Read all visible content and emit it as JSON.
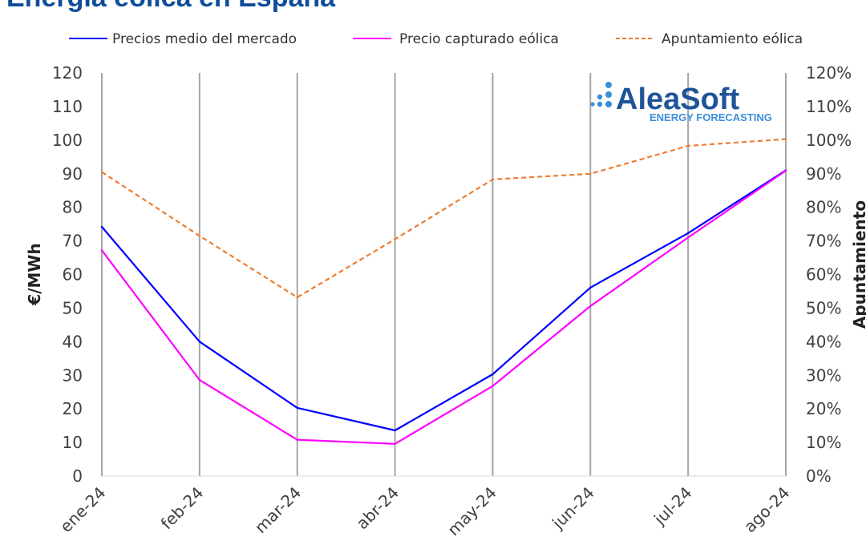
{
  "chart_data": {
    "type": "line",
    "title": "Energía eólica en España",
    "ylabel": "€/MWh",
    "y2label": "Apuntamiento",
    "categories": [
      "ene-24",
      "feb-24",
      "mar-24",
      "abr-24",
      "may-24",
      "jun-24",
      "jul-24",
      "ago-24"
    ],
    "ylim": [
      0,
      120
    ],
    "yticks": [
      "0",
      "10",
      "20",
      "30",
      "40",
      "50",
      "60",
      "70",
      "80",
      "90",
      "100",
      "110",
      "120"
    ],
    "y2lim": [
      0,
      1.2
    ],
    "y2ticks": [
      "0%",
      "10%",
      "20%",
      "30%",
      "40%",
      "50%",
      "60%",
      "70%",
      "80%",
      "90%",
      "100%",
      "110%",
      "120%"
    ],
    "grid": "vertical",
    "legend_position": "top",
    "series": [
      {
        "name": "Precios medio del mercado",
        "axis": "left",
        "color": "#0000ff",
        "style": "solid",
        "values": [
          74.2,
          40.0,
          20.3,
          13.6,
          30.3,
          56.1,
          72.3,
          91.0
        ]
      },
      {
        "name": "Precio capturado eólica",
        "axis": "right_scaled_left",
        "color": "#ff00ff",
        "style": "solid",
        "values": [
          67.2,
          28.6,
          10.8,
          9.6,
          26.8,
          50.6,
          71.0,
          90.9
        ]
      },
      {
        "name": "Apuntamiento eólica",
        "axis": "right",
        "color": "#ed7d31",
        "style": "dashed",
        "values": [
          0.905,
          0.715,
          0.532,
          0.705,
          0.883,
          0.9,
          0.983,
          1.003
        ]
      }
    ]
  },
  "branding": {
    "name": "AleaSoft",
    "tagline": "ENERGY FORECASTING",
    "colors": {
      "primary": "#1f5597",
      "secondary": "#3b8fd9"
    }
  },
  "colors": {
    "title": "#0f4c9b",
    "grid": "#a6a6a6"
  }
}
